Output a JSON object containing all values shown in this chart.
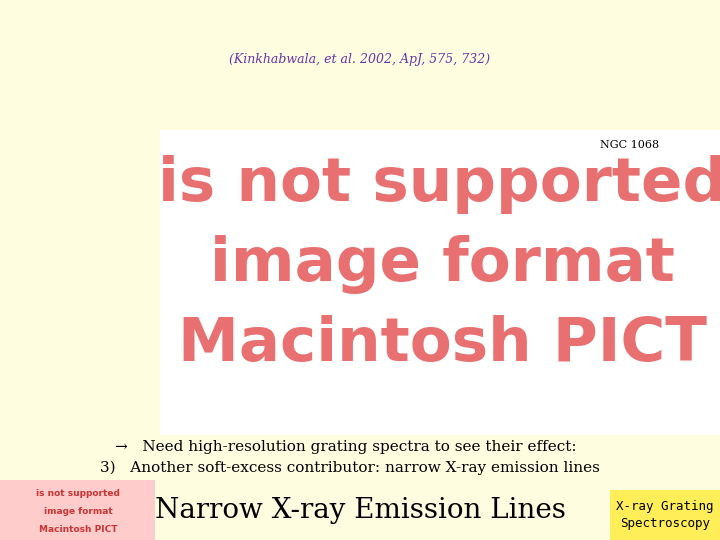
{
  "background_color": "#FFFDE0",
  "title": "Narrow X-ray Emission Lines",
  "title_fontsize": 20,
  "title_color": "#000000",
  "badge_text": "X-ray Grating\nSpectroscopy",
  "badge_bg": "#FFEE58",
  "badge_color": "#000000",
  "badge_fontsize": 9,
  "line1": "3)   Another soft-excess contributor: narrow X-ray emission lines",
  "line2": "→   Need high-resolution grating spectra to see their effect:",
  "line_fontsize": 11,
  "line_color": "#000000",
  "pict_text_lines": [
    "Macintosh PICT",
    "image format",
    "is not supported"
  ],
  "pict_text_color": "#E87070",
  "pict_bg": "#FFFFFF",
  "ngc_label": "NGC 1068",
  "ngc_color": "#000000",
  "ngc_fontsize": 8,
  "citation": "(Kinkhabwala, et al. 2002, ApJ, 575, 732)",
  "citation_color": "#6633AA",
  "citation_fontsize": 9,
  "top_pict_lines": [
    "Macintosh PICT",
    "image format",
    "is not supported"
  ],
  "top_pict_color": "#CC3333",
  "top_pict_bg": "#FFCCCC"
}
